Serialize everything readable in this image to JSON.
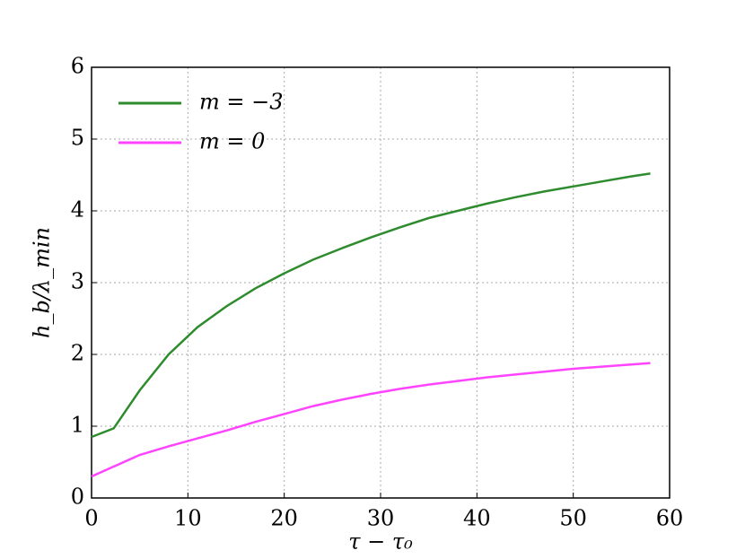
{
  "chart_data": {
    "type": "line",
    "x_label": "τ − τ₀",
    "y_label": "h_b/λ_min",
    "xlim": [
      0,
      60
    ],
    "xticks": [
      0,
      10,
      20,
      30,
      40,
      50,
      60
    ],
    "ylim": [
      0,
      6
    ],
    "yticks": [
      0,
      1,
      2,
      3,
      4,
      5,
      6
    ],
    "grid": true,
    "legend": "upper left",
    "series": [
      {
        "name": "m = −3",
        "color": "#2e8b2e",
        "x": [
          0,
          2.3,
          5,
          8,
          11,
          14,
          17,
          20,
          23,
          26,
          29,
          32,
          35,
          38,
          41,
          44,
          47,
          50,
          53,
          56,
          58
        ],
        "values": [
          0.85,
          0.97,
          1.5,
          2.0,
          2.38,
          2.67,
          2.92,
          3.13,
          3.32,
          3.48,
          3.63,
          3.77,
          3.9,
          4.0,
          4.1,
          4.19,
          4.27,
          4.34,
          4.41,
          4.48,
          4.52
        ]
      },
      {
        "name": "m = 0",
        "color": "#ff44ff",
        "x": [
          0,
          2,
          5,
          8,
          11,
          14,
          17,
          20,
          23,
          26,
          29,
          32,
          35,
          38,
          41,
          44,
          47,
          50,
          53,
          56,
          58
        ],
        "values": [
          0.3,
          0.42,
          0.6,
          0.72,
          0.83,
          0.94,
          1.06,
          1.17,
          1.28,
          1.37,
          1.45,
          1.52,
          1.58,
          1.63,
          1.68,
          1.72,
          1.76,
          1.8,
          1.83,
          1.86,
          1.88
        ]
      }
    ]
  }
}
